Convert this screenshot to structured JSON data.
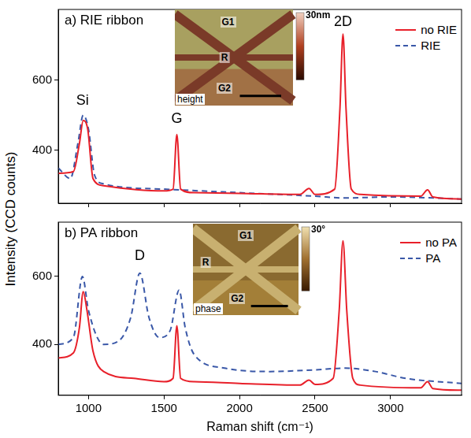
{
  "chart_data": [
    {
      "type": "line",
      "title": "a) RIE ribbon",
      "ylabel": "Intensity (CCD counts)",
      "xlim": [
        800,
        3470
      ],
      "xticks": [
        1000,
        1500,
        2000,
        2500,
        3000
      ],
      "ylim": [
        250,
        800
      ],
      "yticks": [
        400,
        600
      ],
      "tick_labels": "y",
      "grid": false,
      "legend": "upper right",
      "series": [
        {
          "name": "no RIE",
          "color": "#e8202a",
          "line_style": "solid",
          "x": [
            800,
            900,
            940,
            965,
            995,
            1030,
            1100,
            1500,
            1560,
            1585,
            1610,
            1700,
            2000,
            2400,
            2460,
            2500,
            2630,
            2665,
            2685,
            2705,
            2740,
            2800,
            3200,
            3245,
            3280,
            3470
          ],
          "values": [
            335,
            340,
            420,
            485,
            460,
            320,
            300,
            285,
            290,
            445,
            290,
            280,
            278,
            275,
            292,
            275,
            290,
            520,
            730,
            520,
            290,
            275,
            270,
            288,
            268,
            262
          ]
        },
        {
          "name": "RIE",
          "color": "#3a58a8",
          "line_style": "dashed",
          "x": [
            800,
            880,
            930,
            965,
            1000,
            1040,
            1100,
            1500,
            2000,
            2500,
            2700,
            3000,
            3470
          ],
          "values": [
            350,
            320,
            420,
            500,
            460,
            330,
            305,
            290,
            280,
            270,
            265,
            268,
            262
          ]
        }
      ],
      "annotations": [
        {
          "text": "Si",
          "x": 960,
          "y": 520
        },
        {
          "text": "G",
          "x": 1585,
          "y": 470
        },
        {
          "text": "2D",
          "x": 2685,
          "y": 745
        }
      ],
      "inset": {
        "labels": [
          "G1",
          "R",
          "G2"
        ],
        "colorbar_label": "30nm",
        "channel": "height"
      }
    },
    {
      "type": "line",
      "title": "b) PA ribbon",
      "xlabel": "Raman shift (cm⁻¹)",
      "xlim": [
        800,
        3470
      ],
      "xticks": [
        1000,
        1500,
        2000,
        2500,
        3000
      ],
      "ylim": [
        250,
        760
      ],
      "yticks": [
        400,
        600
      ],
      "grid": false,
      "legend": "upper right",
      "series": [
        {
          "name": "no PA",
          "color": "#e8202a",
          "line_style": "solid",
          "x": [
            800,
            900,
            940,
            965,
            990,
            1030,
            1100,
            1300,
            1500,
            1560,
            1585,
            1610,
            1700,
            2000,
            2400,
            2460,
            2500,
            2620,
            2660,
            2685,
            2710,
            2750,
            2800,
            3200,
            3245,
            3280,
            3470
          ],
          "values": [
            360,
            375,
            450,
            555,
            500,
            380,
            320,
            300,
            290,
            300,
            455,
            300,
            290,
            285,
            280,
            295,
            282,
            300,
            500,
            705,
            500,
            300,
            280,
            272,
            290,
            270,
            265
          ]
        },
        {
          "name": "PA",
          "color": "#3a58a8",
          "line_style": "dashed",
          "x": [
            800,
            900,
            960,
            1000,
            1100,
            1200,
            1280,
            1340,
            1400,
            1470,
            1540,
            1600,
            1640,
            1700,
            1900,
            2200,
            2500,
            2700,
            2900,
            3100,
            3470
          ],
          "values": [
            400,
            420,
            600,
            500,
            400,
            410,
            480,
            610,
            480,
            420,
            440,
            560,
            450,
            370,
            330,
            320,
            325,
            330,
            320,
            300,
            285
          ]
        }
      ],
      "annotations": [
        {
          "text": "D",
          "x": 1340,
          "y": 640
        }
      ],
      "inset": {
        "labels": [
          "G1",
          "R",
          "G2"
        ],
        "colorbar_label": "30°",
        "channel": "phase"
      }
    }
  ]
}
